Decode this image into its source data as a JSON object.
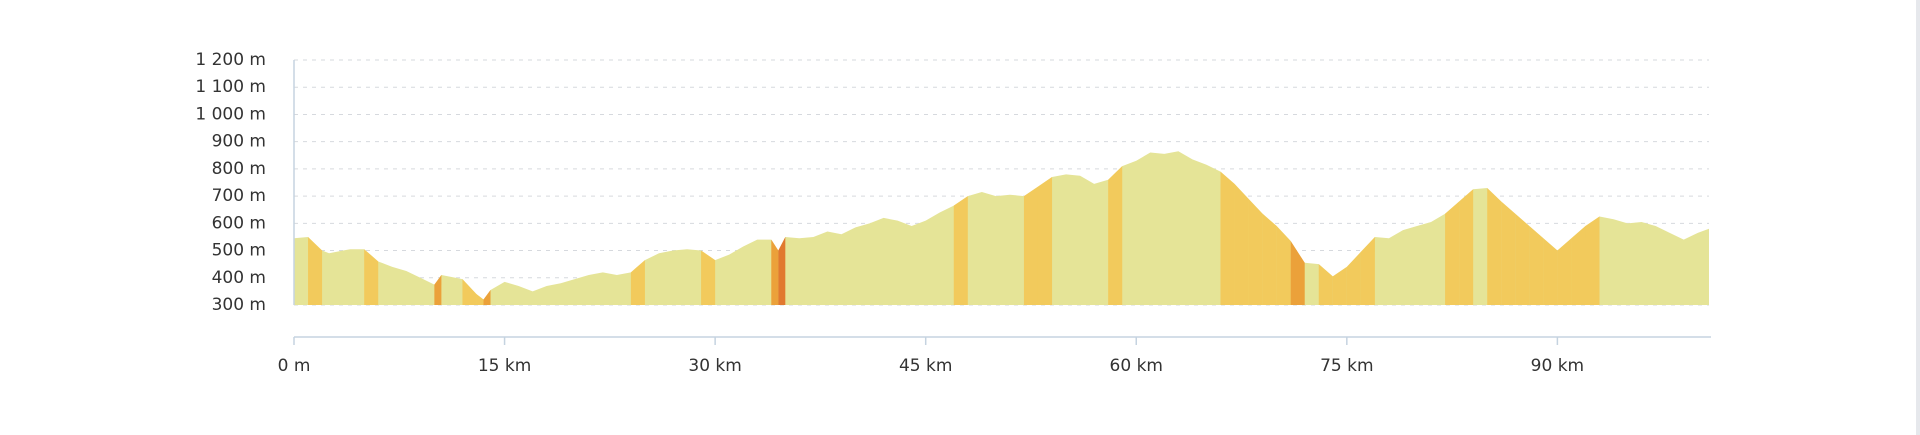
{
  "chart_data": {
    "type": "area",
    "x": [
      0,
      1,
      2,
      2.5,
      3.5,
      4,
      5,
      6,
      7,
      8,
      9,
      10,
      10.5,
      11,
      12,
      13,
      13.5,
      14,
      15,
      16,
      17,
      18,
      19,
      20,
      21,
      22,
      23,
      24,
      25,
      26,
      27,
      28,
      29,
      30,
      31,
      32,
      33,
      34,
      34.5,
      35,
      36,
      37,
      38,
      39,
      40,
      41,
      42,
      43,
      44,
      45,
      46,
      47,
      48,
      49,
      50,
      51,
      52,
      53,
      54,
      55,
      56,
      57,
      58,
      59,
      60,
      61,
      62,
      63,
      64,
      65,
      66,
      67,
      68,
      69,
      70,
      71,
      72,
      73,
      74,
      75,
      76,
      77,
      78,
      79,
      80,
      81,
      82,
      83,
      84,
      85,
      86,
      87,
      88,
      89,
      90,
      91,
      92,
      93,
      94,
      95,
      96,
      97,
      98,
      99,
      100,
      100.8
    ],
    "values": [
      545,
      550,
      500,
      490,
      500,
      505,
      505,
      460,
      440,
      425,
      400,
      375,
      410,
      405,
      395,
      340,
      320,
      355,
      385,
      370,
      350,
      370,
      380,
      395,
      410,
      420,
      410,
      420,
      465,
      490,
      500,
      505,
      500,
      465,
      485,
      515,
      540,
      540,
      500,
      550,
      545,
      550,
      570,
      560,
      585,
      600,
      620,
      610,
      590,
      610,
      640,
      665,
      700,
      715,
      700,
      705,
      700,
      735,
      770,
      780,
      775,
      745,
      760,
      810,
      830,
      860,
      855,
      865,
      835,
      815,
      790,
      745,
      690,
      635,
      590,
      535,
      455,
      450,
      405,
      440,
      495,
      550,
      545,
      575,
      590,
      605,
      635,
      680,
      725,
      730,
      680,
      635,
      590,
      545,
      500,
      545,
      590,
      625,
      615,
      600,
      605,
      590,
      565,
      540,
      565,
      580
    ],
    "color": "#e5e497",
    "xlim": [
      0,
      100.8
    ],
    "ylim": [
      300,
      1200
    ],
    "xticks": [
      {
        "value": 0,
        "label": "0 m"
      },
      {
        "value": 15,
        "label": "15 km"
      },
      {
        "value": 30,
        "label": "30 km"
      },
      {
        "value": 45,
        "label": "45 km"
      },
      {
        "value": 60,
        "label": "60 km"
      },
      {
        "value": 75,
        "label": "75 km"
      },
      {
        "value": 90,
        "label": "90 km"
      }
    ],
    "yticks": [
      {
        "value": 300,
        "label": "300 m"
      },
      {
        "value": 400,
        "label": "400 m"
      },
      {
        "value": 500,
        "label": "500 m"
      },
      {
        "value": 600,
        "label": "600 m"
      },
      {
        "value": 700,
        "label": "700 m"
      },
      {
        "value": 800,
        "label": "800 m"
      },
      {
        "value": 900,
        "label": "900 m"
      },
      {
        "value": 1000,
        "label": "1 000 m"
      },
      {
        "value": 1100,
        "label": "1 100 m"
      },
      {
        "value": 1200,
        "label": "1 200 m"
      }
    ],
    "grid": true
  }
}
